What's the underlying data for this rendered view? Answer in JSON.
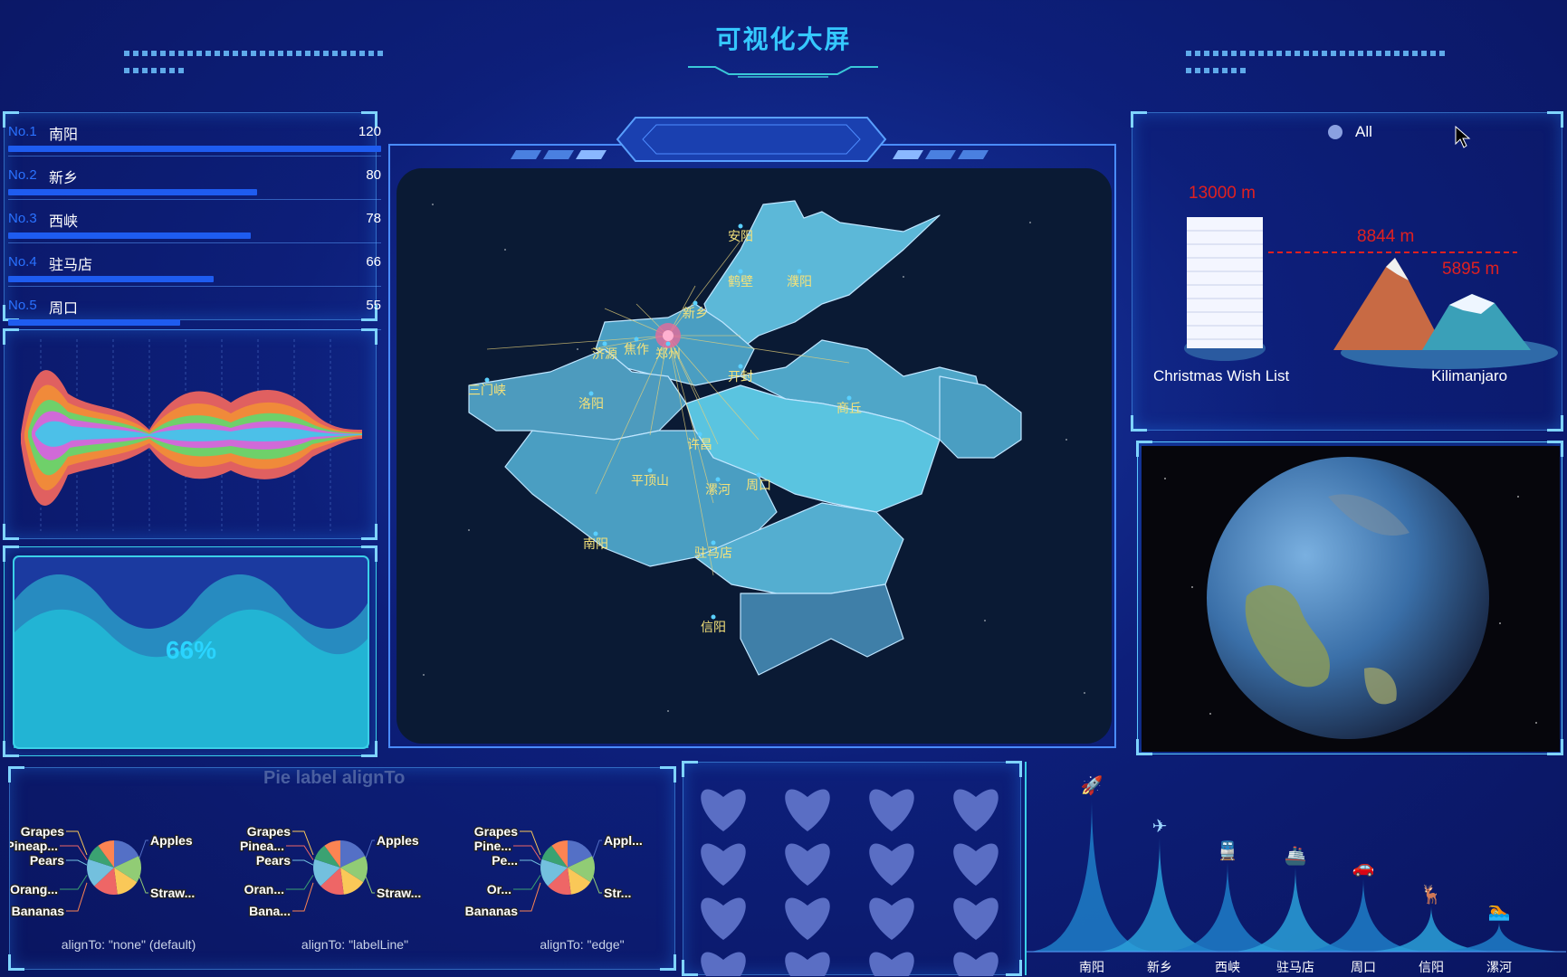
{
  "header": {
    "title": "可视化大屏"
  },
  "ranking": {
    "items": [
      {
        "no": "No.1",
        "name": "南阳",
        "value": "120",
        "pct": 1.0
      },
      {
        "no": "No.2",
        "name": "新乡",
        "value": "80",
        "pct": 0.667
      },
      {
        "no": "No.3",
        "name": "西峡",
        "value": "78",
        "pct": 0.65
      },
      {
        "no": "No.4",
        "name": "驻马店",
        "value": "66",
        "pct": 0.55
      },
      {
        "no": "No.5",
        "name": "周口",
        "value": "55",
        "pct": 0.46
      }
    ]
  },
  "liquid": {
    "value": 0.66,
    "label": "66%"
  },
  "pie_section": {
    "title": "Pie label alignTo",
    "pies": [
      {
        "caption": "alignTo: \"none\" (default)",
        "labels": [
          "Grapes",
          "Pineap...",
          "Pears",
          "Orang...",
          "Bananas",
          "Apples",
          "Straw..."
        ]
      },
      {
        "caption": "alignTo: \"labelLine\"",
        "labels": [
          "Grapes",
          "Pinea...",
          "Pears",
          "Oran...",
          "Bana...",
          "Apples",
          "Straw..."
        ]
      },
      {
        "caption": "alignTo: \"edge\"",
        "labels": [
          "Grapes",
          "Pine...",
          "Pe...",
          "Or...",
          "Bananas",
          "Appl...",
          "Str..."
        ]
      }
    ],
    "slice_colors": [
      "#5470c6",
      "#91cc75",
      "#fac858",
      "#ee6666",
      "#73c0de",
      "#3ba272",
      "#fc8452"
    ]
  },
  "map": {
    "cities": [
      "安阳",
      "鹤壁",
      "濮阳",
      "新乡",
      "焦作",
      "济源",
      "三门峡",
      "洛阳",
      "郑州",
      "开封",
      "商丘",
      "许昌",
      "平顶山",
      "漯河",
      "周口",
      "南阳",
      "驻马店",
      "信阳"
    ]
  },
  "mountain": {
    "legend": "All",
    "values": [
      "13000 m",
      "8844 m",
      "5895 m"
    ],
    "names": [
      "Christmas Wish List",
      "Kilimanjaro"
    ]
  },
  "peaks": {
    "categories": [
      "南阳",
      "新乡",
      "西峡",
      "驻马店",
      "周口",
      "信阳",
      "漯河"
    ],
    "values": [
      95,
      70,
      55,
      52,
      45,
      28,
      18
    ],
    "icons": [
      "rocket-icon",
      "plane-icon",
      "train-icon",
      "ship-icon",
      "car-icon",
      "deer-icon",
      "swimmer-icon"
    ]
  },
  "colors": {
    "accent": "#35c8ff",
    "bar": "#1e5cf0",
    "mapFill": "#4a9ec2",
    "mapFillLight": "#5fc0de"
  }
}
